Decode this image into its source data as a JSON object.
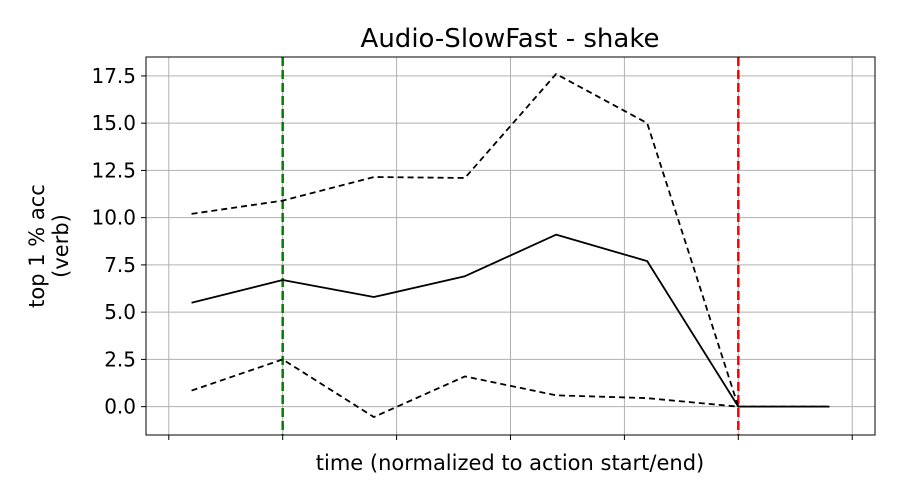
{
  "chart_data": {
    "type": "line",
    "title": "Audio-SlowFast - shake",
    "xlabel": "time (normalized to action start/end)",
    "ylabel_line1": "top 1 % acc",
    "ylabel_line2": "(verb)",
    "ylim": [
      -1.5,
      18.5
    ],
    "xlim": [
      -0.5,
      7.5
    ],
    "grid": true,
    "y_ticks": [
      0.0,
      2.5,
      5.0,
      7.5,
      10.0,
      12.5,
      15.0,
      17.5
    ],
    "y_tick_labels": [
      "0.0",
      "2.5",
      "5.0",
      "7.5",
      "10.0",
      "12.5",
      "15.0",
      "17.5"
    ],
    "x_ticks": [
      -0.25,
      1,
      2.25,
      3.5,
      4.75,
      6,
      7.25
    ],
    "x": [
      0,
      1,
      2,
      3,
      4,
      5,
      6,
      7
    ],
    "series": [
      {
        "values": [
          5.5,
          6.7,
          5.8,
          6.9,
          9.1,
          7.7,
          0.0,
          0.0
        ],
        "style": "solid",
        "color": "#000000"
      },
      {
        "values": [
          10.2,
          10.9,
          12.15,
          12.1,
          17.6,
          15.0,
          0.0,
          0.0
        ],
        "style": "dashed",
        "color": "#000000"
      },
      {
        "values": [
          0.85,
          2.5,
          -0.55,
          1.6,
          0.6,
          0.45,
          0.0,
          0.0
        ],
        "style": "dashed",
        "color": "#000000"
      }
    ],
    "vlines": [
      {
        "x": 1,
        "color": "#008000"
      },
      {
        "x": 6,
        "color": "#ff0000"
      }
    ]
  }
}
